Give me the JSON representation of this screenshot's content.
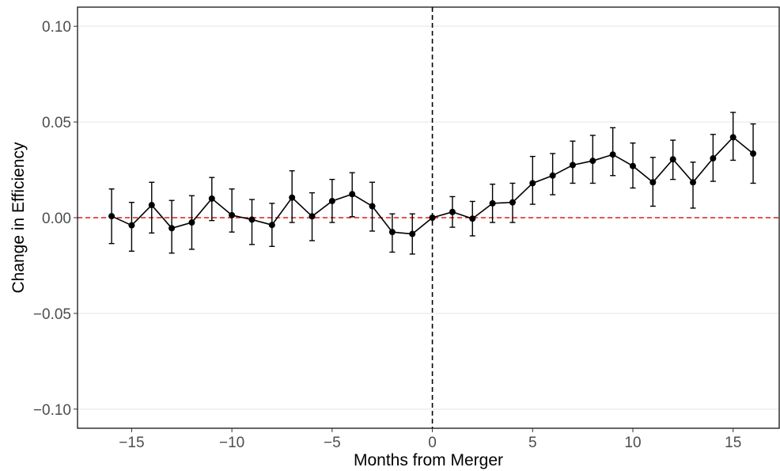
{
  "chart_data": {
    "type": "scatter",
    "title": "",
    "xlabel": "Months from Merger",
    "ylabel": "Change in Efficiency",
    "xlim": [
      -17.7,
      17.3
    ],
    "ylim": [
      -0.11,
      0.11
    ],
    "xticks": [
      -15,
      -10,
      -5,
      0,
      5,
      10,
      15
    ],
    "xtick_labels": [
      "−15",
      "−10",
      "−5",
      "0",
      "5",
      "10",
      "15"
    ],
    "yticks": [
      -0.1,
      -0.05,
      0.0,
      0.05,
      0.1
    ],
    "ytick_labels": [
      "−0.10",
      "−0.05",
      "0.00",
      "0.05",
      "0.10"
    ],
    "grid": "horizontal major gridlines",
    "reference_lines": [
      {
        "axis": "y",
        "value": 0,
        "style": "dashed",
        "color": "#e41a1c"
      },
      {
        "axis": "x",
        "value": 0,
        "style": "dashed",
        "color": "#000000"
      }
    ],
    "series": [
      {
        "x": [
          -16,
          -15,
          -14,
          -13,
          -12,
          -11,
          -10,
          -9,
          -8,
          -7,
          -6,
          -5,
          -4,
          -3,
          -2,
          -1,
          0,
          1,
          2,
          3,
          4,
          5,
          6,
          7,
          8,
          9,
          10,
          11,
          12,
          13,
          14,
          15,
          16
        ],
        "y": [
          0.0008,
          -0.004,
          0.0066,
          -0.0055,
          -0.0025,
          0.01,
          0.0013,
          -0.001,
          -0.0038,
          0.0105,
          0.0007,
          0.0087,
          0.0123,
          0.006,
          -0.0075,
          -0.0085,
          0.0,
          0.003,
          -0.0005,
          0.0075,
          0.008,
          0.018,
          0.022,
          0.0275,
          0.0297,
          0.033,
          0.027,
          0.0185,
          0.0305,
          0.0185,
          0.031,
          0.042,
          0.0335
        ],
        "ci_low": [
          -0.0135,
          -0.0175,
          -0.008,
          -0.0185,
          -0.0165,
          -0.0015,
          -0.0075,
          -0.014,
          -0.015,
          -0.0025,
          -0.012,
          -0.0025,
          0.0005,
          -0.007,
          -0.018,
          -0.019,
          0.0,
          -0.005,
          -0.0095,
          -0.0025,
          -0.0025,
          0.007,
          0.012,
          0.018,
          0.018,
          0.022,
          0.0155,
          0.006,
          0.02,
          0.005,
          0.019,
          0.03,
          0.018
        ],
        "ci_high": [
          0.015,
          0.008,
          0.0185,
          0.009,
          0.0115,
          0.021,
          0.015,
          0.0095,
          0.0075,
          0.0245,
          0.013,
          0.02,
          0.0235,
          0.0185,
          0.002,
          0.002,
          0.0,
          0.011,
          0.0085,
          0.0175,
          0.018,
          0.032,
          0.0335,
          0.04,
          0.043,
          0.047,
          0.039,
          0.0315,
          0.0405,
          0.029,
          0.0435,
          0.055,
          0.049
        ],
        "color": "#000000"
      }
    ]
  }
}
